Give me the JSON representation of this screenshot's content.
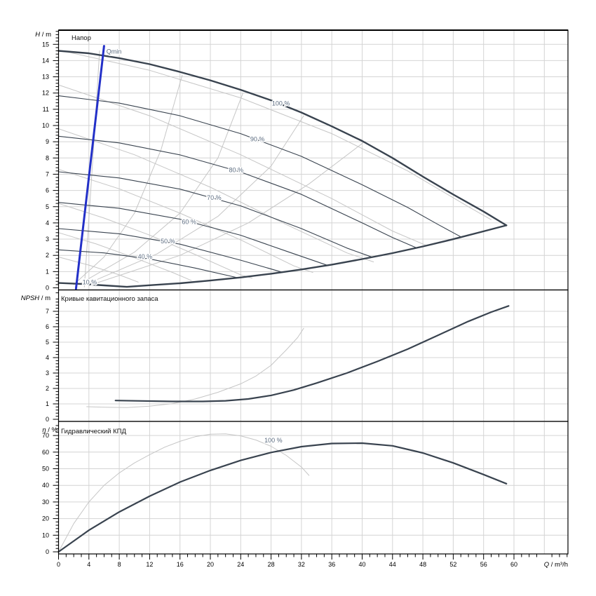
{
  "window": {
    "background": "#ffffff"
  },
  "colors": {
    "dark_curve": "#39434f",
    "gray_curve": "#c6c6c6",
    "grid": "#d4d4d4",
    "blue_qmin": "#2330c8",
    "curve_label": "#5c6c80",
    "axis_text": "#000000",
    "border": "#000000"
  },
  "x_axis": {
    "label": "Q / m³/h",
    "label_sym": "Q",
    "label_rest": " / m³/h",
    "range": [
      0,
      67
    ],
    "major_ticks": [
      0,
      4,
      8,
      12,
      16,
      20,
      24,
      28,
      32,
      36,
      40,
      44,
      48,
      52,
      56,
      60
    ],
    "minor_step": 1,
    "minor_max": 67,
    "grid_step": 4,
    "grid_max": 64
  },
  "chart_data": [
    {
      "id": "head",
      "type": "line",
      "title": "Напор",
      "ylabel": "H / m",
      "ylabel_sym": "H",
      "ylabel_rest": " / m",
      "ylim": [
        0,
        15.9
      ],
      "yticks": [
        0,
        1,
        2,
        3,
        4,
        5,
        6,
        7,
        8,
        9,
        10,
        11,
        12,
        13,
        14,
        15
      ],
      "major_step": 1,
      "series": [
        {
          "name": "iso-rise-1",
          "color": "gray",
          "width": 1,
          "points": [
            [
              3.4,
              0.05
            ],
            [
              4.1,
              5
            ],
            [
              4.8,
              10
            ],
            [
              5.4,
              14.6
            ]
          ]
        },
        {
          "name": "iso-rise-2",
          "color": "gray",
          "width": 1,
          "points": [
            [
              2,
              0.2
            ],
            [
              6,
              1.9
            ],
            [
              10,
              4.6
            ],
            [
              13.5,
              8.5
            ],
            [
              16.3,
              13.1
            ]
          ]
        },
        {
          "name": "iso-rise-3",
          "color": "gray",
          "width": 1,
          "points": [
            [
              3,
              0.3
            ],
            [
              10,
              2.2
            ],
            [
              16,
              4.6
            ],
            [
              21,
              8.0
            ],
            [
              24.3,
              12.0
            ]
          ]
        },
        {
          "name": "iso-rise-4",
          "color": "gray",
          "width": 1,
          "points": [
            [
              4,
              0.3
            ],
            [
              13,
              2.1
            ],
            [
              21,
              4.4
            ],
            [
              28,
              7.5
            ],
            [
              32.3,
              10.6
            ]
          ]
        },
        {
          "name": "iso-rise-5",
          "color": "gray",
          "width": 1,
          "points": [
            [
              5,
              0.3
            ],
            [
              16,
              2.0
            ],
            [
              25,
              4.0
            ],
            [
              33,
              6.4
            ],
            [
              40.3,
              9.0
            ]
          ]
        },
        {
          "name": "iso-fall-1",
          "color": "gray",
          "width": 1,
          "points": [
            [
              1,
              14.55
            ],
            [
              12,
              13.4
            ],
            [
              24,
              11.7
            ],
            [
              36,
              9.5
            ],
            [
              46,
              7.2
            ],
            [
              54,
              5.0
            ],
            [
              57,
              4.2
            ]
          ]
        },
        {
          "name": "iso-fall-2",
          "color": "gray",
          "width": 1,
          "points": [
            [
              0,
              12.5
            ],
            [
              12,
              10.6
            ],
            [
              24,
              8.2
            ],
            [
              36,
              5.5
            ],
            [
              44,
              3.5
            ],
            [
              48.5,
              2.6
            ]
          ]
        },
        {
          "name": "iso-fall-3",
          "color": "gray",
          "width": 1,
          "points": [
            [
              0,
              9.8
            ],
            [
              10,
              8.2
            ],
            [
              20,
              6.2
            ],
            [
              30,
              3.9
            ],
            [
              38,
              2.15
            ],
            [
              41.5,
              1.6
            ]
          ]
        },
        {
          "name": "iso-fall-4",
          "color": "gray",
          "width": 1,
          "points": [
            [
              0,
              7.3
            ],
            [
              8,
              6.1
            ],
            [
              16,
              4.6
            ],
            [
              24,
              2.95
            ],
            [
              31,
              1.35
            ],
            [
              33.5,
              0.95
            ]
          ]
        },
        {
          "name": "iso-fall-5",
          "color": "gray",
          "width": 1,
          "points": [
            [
              0,
              5.2
            ],
            [
              6,
              4.3
            ],
            [
              12,
              3.25
            ],
            [
              18,
              2.05
            ],
            [
              24,
              0.8
            ],
            [
              25.5,
              0.6
            ]
          ]
        },
        {
          "name": "iso-fall-6",
          "color": "gray",
          "width": 1,
          "points": [
            [
              0,
              3.4
            ],
            [
              5,
              2.7
            ],
            [
              10,
              1.85
            ],
            [
              15,
              0.95
            ],
            [
              17.5,
              0.45
            ]
          ]
        },
        {
          "name": "iso-fall-7",
          "color": "gray",
          "width": 1,
          "points": [
            [
              0,
              1.9
            ],
            [
              4,
              1.4
            ],
            [
              8,
              0.8
            ],
            [
              10.5,
              0.35
            ]
          ]
        },
        {
          "name": "speed-90",
          "color": "dark",
          "width": 1.1,
          "points": [
            [
              0,
              11.83
            ],
            [
              8,
              11.38
            ],
            [
              16,
              10.6
            ],
            [
              24,
              9.5
            ],
            [
              32,
              8.1
            ],
            [
              40,
              6.35
            ],
            [
              46,
              4.95
            ],
            [
              50,
              3.9
            ],
            [
              53.1,
              3.12
            ]
          ]
        },
        {
          "name": "speed-80",
          "color": "dark",
          "width": 1.1,
          "points": [
            [
              0,
              9.34
            ],
            [
              8,
              8.93
            ],
            [
              16,
              8.19
            ],
            [
              24,
              7.13
            ],
            [
              32,
              5.76
            ],
            [
              40,
              4.0
            ],
            [
              44,
              3.1
            ],
            [
              47.2,
              2.46
            ]
          ]
        },
        {
          "name": "speed-70",
          "color": "dark",
          "width": 1.1,
          "points": [
            [
              0,
              7.15
            ],
            [
              8,
              6.77
            ],
            [
              16,
              6.08
            ],
            [
              24,
              5.05
            ],
            [
              32,
              3.65
            ],
            [
              38,
              2.45
            ],
            [
              41.3,
              1.89
            ]
          ]
        },
        {
          "name": "speed-60",
          "color": "dark",
          "width": 1.1,
          "points": [
            [
              0,
              5.26
            ],
            [
              8,
              4.9
            ],
            [
              16,
              4.23
            ],
            [
              24,
              3.24
            ],
            [
              30,
              2.26
            ],
            [
              35.4,
              1.39
            ]
          ]
        },
        {
          "name": "speed-50",
          "color": "dark",
          "width": 1.1,
          "points": [
            [
              0,
              3.65
            ],
            [
              8,
              3.33
            ],
            [
              16,
              2.69
            ],
            [
              24,
              1.7
            ],
            [
              29.5,
              0.96
            ]
          ]
        },
        {
          "name": "speed-40",
          "color": "dark",
          "width": 1.1,
          "points": [
            [
              0,
              2.34
            ],
            [
              6,
              2.15
            ],
            [
              12,
              1.78
            ],
            [
              18,
              1.22
            ],
            [
              23.6,
              0.62
            ]
          ]
        },
        {
          "name": "speed-100",
          "color": "dark",
          "width": 2.4,
          "points": [
            [
              0,
              14.6
            ],
            [
              4,
              14.45
            ],
            [
              8,
              14.15
            ],
            [
              12,
              13.78
            ],
            [
              16,
              13.3
            ],
            [
              20,
              12.78
            ],
            [
              24,
              12.2
            ],
            [
              28,
              11.55
            ],
            [
              32,
              10.8
            ],
            [
              36,
              9.95
            ],
            [
              40,
              9.05
            ],
            [
              44,
              8.0
            ],
            [
              48,
              6.85
            ],
            [
              52,
              5.75
            ],
            [
              56,
              4.7
            ],
            [
              59,
              3.85
            ]
          ]
        },
        {
          "name": "envelope-min",
          "color": "dark",
          "width": 2.4,
          "points": [
            [
              0,
              0.3
            ],
            [
              3,
              0.24
            ],
            [
              6,
              0.15
            ],
            [
              9,
              0.06
            ],
            [
              12,
              0.16
            ],
            [
              16,
              0.28
            ],
            [
              20,
              0.45
            ],
            [
              24,
              0.64
            ],
            [
              28,
              0.87
            ],
            [
              32,
              1.13
            ],
            [
              36,
              1.43
            ],
            [
              40,
              1.77
            ],
            [
              44,
              2.14
            ],
            [
              48,
              2.55
            ],
            [
              52,
              3.0
            ],
            [
              56,
              3.48
            ],
            [
              59,
              3.85
            ]
          ]
        },
        {
          "name": "qmin",
          "color": "blue",
          "width": 3,
          "points": [
            [
              6.0,
              14.9
            ],
            [
              2.3,
              -0.05
            ]
          ]
        }
      ],
      "labels": [
        {
          "text": "100 %",
          "q": 29.3,
          "v": 11.35
        },
        {
          "text": "90 %",
          "q": 26.2,
          "v": 9.15
        },
        {
          "text": "80 %",
          "q": 23.4,
          "v": 7.25
        },
        {
          "text": "70 %",
          "q": 20.5,
          "v": 5.55
        },
        {
          "text": "60 %",
          "q": 17.2,
          "v": 4.05
        },
        {
          "text": "50 %",
          "q": 14.4,
          "v": 2.87
        },
        {
          "text": "40 %",
          "q": 11.4,
          "v": 1.92
        },
        {
          "text": "10 %",
          "q": 4.1,
          "v": 0.35
        },
        {
          "text": "Qmin",
          "q": 7.3,
          "v": 14.55
        }
      ]
    },
    {
      "id": "npsh",
      "type": "line",
      "title": "Кривые кавитационного запаса",
      "ylabel": "NPSH / m",
      "ylabel_sym": "NPSH",
      "ylabel_rest": " / m",
      "ylim": [
        0,
        8.3
      ],
      "yticks": [
        0,
        1,
        2,
        3,
        4,
        5,
        6,
        7
      ],
      "major_step": 1,
      "series": [
        {
          "name": "npsh-reduced",
          "color": "gray",
          "width": 1,
          "points": [
            [
              3.7,
              0.82
            ],
            [
              6,
              0.78
            ],
            [
              9,
              0.76
            ],
            [
              12,
              0.85
            ],
            [
              15,
              1.02
            ],
            [
              18,
              1.32
            ],
            [
              21,
              1.75
            ],
            [
              24,
              2.3
            ],
            [
              26,
              2.8
            ],
            [
              28,
              3.5
            ],
            [
              30,
              4.5
            ],
            [
              31.5,
              5.3
            ],
            [
              32.3,
              5.9
            ]
          ]
        },
        {
          "name": "npsh-100",
          "color": "dark",
          "width": 2.2,
          "points": [
            [
              7.5,
              1.22
            ],
            [
              11,
              1.19
            ],
            [
              15,
              1.16
            ],
            [
              19,
              1.16
            ],
            [
              22,
              1.2
            ],
            [
              25,
              1.32
            ],
            [
              28,
              1.55
            ],
            [
              31,
              1.9
            ],
            [
              34,
              2.35
            ],
            [
              38,
              3.0
            ],
            [
              42,
              3.75
            ],
            [
              46,
              4.55
            ],
            [
              50,
              5.45
            ],
            [
              54,
              6.35
            ],
            [
              57,
              6.95
            ],
            [
              59.3,
              7.35
            ]
          ]
        }
      ],
      "labels": []
    },
    {
      "id": "eff",
      "type": "line",
      "title": "Гидравлический КПД",
      "ylabel": "η / %",
      "ylabel_sym": "η",
      "ylabel_rest": " / %",
      "ylim": [
        0,
        78
      ],
      "yticks": [
        0,
        10,
        20,
        30,
        40,
        50,
        60,
        70
      ],
      "major_step": 10,
      "series": [
        {
          "name": "eff-reduced",
          "color": "gray",
          "width": 1,
          "points": [
            [
              0,
              0
            ],
            [
              2,
              17
            ],
            [
              4,
              30
            ],
            [
              6,
              40
            ],
            [
              8,
              47.5
            ],
            [
              10,
              53.5
            ],
            [
              12,
              58.5
            ],
            [
              14,
              63
            ],
            [
              16,
              66.5
            ],
            [
              18,
              69.3
            ],
            [
              20,
              70.8
            ],
            [
              22,
              71
            ],
            [
              24,
              69.8
            ],
            [
              26,
              67.3
            ],
            [
              28,
              63.5
            ],
            [
              30,
              58
            ],
            [
              32,
              51
            ],
            [
              33,
              46
            ]
          ]
        },
        {
          "name": "eff-100",
          "color": "dark",
          "width": 2.2,
          "points": [
            [
              0,
              0
            ],
            [
              4,
              13
            ],
            [
              8,
              24
            ],
            [
              12,
              33.5
            ],
            [
              16,
              42
            ],
            [
              20,
              49
            ],
            [
              24,
              55
            ],
            [
              28,
              59.8
            ],
            [
              32,
              63.3
            ],
            [
              36,
              65.2
            ],
            [
              40,
              65.4
            ],
            [
              44,
              63.8
            ],
            [
              48,
              59.5
            ],
            [
              52,
              53.5
            ],
            [
              56,
              46.5
            ],
            [
              59,
              41
            ]
          ]
        }
      ],
      "labels": [
        {
          "text": "100 %",
          "q": 28.3,
          "v": 67
        }
      ]
    }
  ]
}
